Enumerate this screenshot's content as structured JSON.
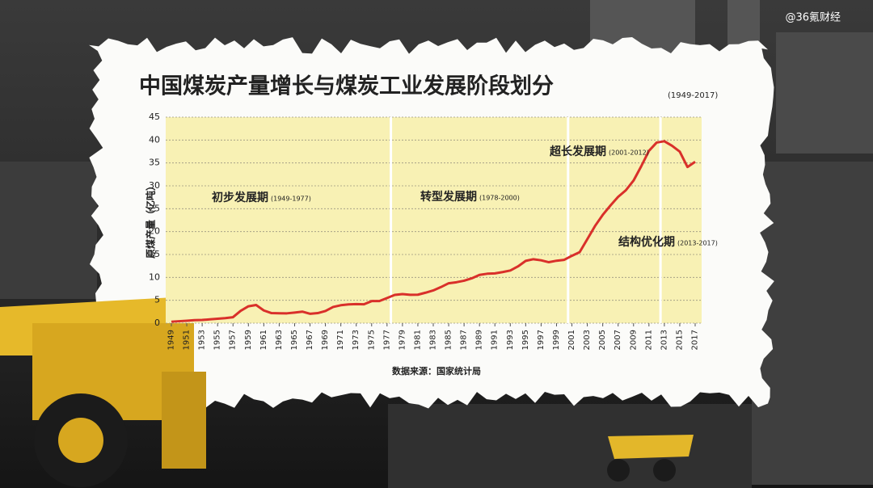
{
  "watermark": "@36氪财经",
  "chart_data": {
    "type": "line",
    "title": "中国煤炭产量增长与煤炭工业发展阶段划分",
    "subtitle": "(1949-2017)",
    "y_label": "原煤产量（亿吨）",
    "source": "数据来源：国家统计局",
    "color": "#d9302a",
    "grid": true,
    "x": [
      1949,
      1950,
      1951,
      1952,
      1953,
      1954,
      1955,
      1956,
      1957,
      1958,
      1959,
      1960,
      1961,
      1962,
      1963,
      1964,
      1965,
      1966,
      1967,
      1968,
      1969,
      1970,
      1971,
      1972,
      1973,
      1974,
      1975,
      1976,
      1977,
      1978,
      1979,
      1980,
      1981,
      1982,
      1983,
      1984,
      1985,
      1986,
      1987,
      1988,
      1989,
      1990,
      1991,
      1992,
      1993,
      1994,
      1995,
      1996,
      1997,
      1998,
      1999,
      2000,
      2001,
      2002,
      2003,
      2004,
      2005,
      2006,
      2007,
      2008,
      2009,
      2010,
      2011,
      2012,
      2013,
      2014,
      2015,
      2016,
      2017
    ],
    "values": [
      0.32,
      0.43,
      0.53,
      0.66,
      0.7,
      0.84,
      0.98,
      1.1,
      1.31,
      2.7,
      3.69,
      3.97,
      2.78,
      2.2,
      2.17,
      2.15,
      2.32,
      2.52,
      2.06,
      2.2,
      2.66,
      3.54,
      3.92,
      4.1,
      4.17,
      4.13,
      4.82,
      4.83,
      5.5,
      6.18,
      6.35,
      6.2,
      6.22,
      6.66,
      7.15,
      7.89,
      8.72,
      8.94,
      9.28,
      9.8,
      10.54,
      10.8,
      10.87,
      11.16,
      11.5,
      12.4,
      13.61,
      13.97,
      13.73,
      13.32,
      13.64,
      13.84,
      14.72,
      15.5,
      18.35,
      21.23,
      23.65,
      25.7,
      27.6,
      29.03,
      31.15,
      34.28,
      37.64,
      39.45,
      39.74,
      38.74,
      37.47,
      34.11,
      35.24
    ],
    "xlim": [
      1949,
      2017
    ],
    "xticks": [
      1949,
      1951,
      1953,
      1955,
      1957,
      1959,
      1961,
      1963,
      1965,
      1967,
      1969,
      1971,
      1973,
      1975,
      1977,
      1979,
      1981,
      1983,
      1985,
      1987,
      1989,
      1991,
      1993,
      1995,
      1997,
      1999,
      2001,
      2003,
      2005,
      2007,
      2009,
      2011,
      2013,
      2015,
      2017
    ],
    "ylim": [
      0,
      45
    ],
    "yticks": [
      0,
      5,
      10,
      15,
      20,
      25,
      30,
      35,
      40,
      45
    ],
    "dividers": [
      1977.5,
      2000.5,
      2012.5
    ],
    "annotations": [
      {
        "label": "初步发展期",
        "period": "(1949-1977)"
      },
      {
        "label": "转型发展期",
        "period": "(1978-2000)"
      },
      {
        "label": "超长发展期",
        "period": "(2001-2012)"
      },
      {
        "label": "结构优化期",
        "period": "(2013-2017)"
      }
    ]
  }
}
